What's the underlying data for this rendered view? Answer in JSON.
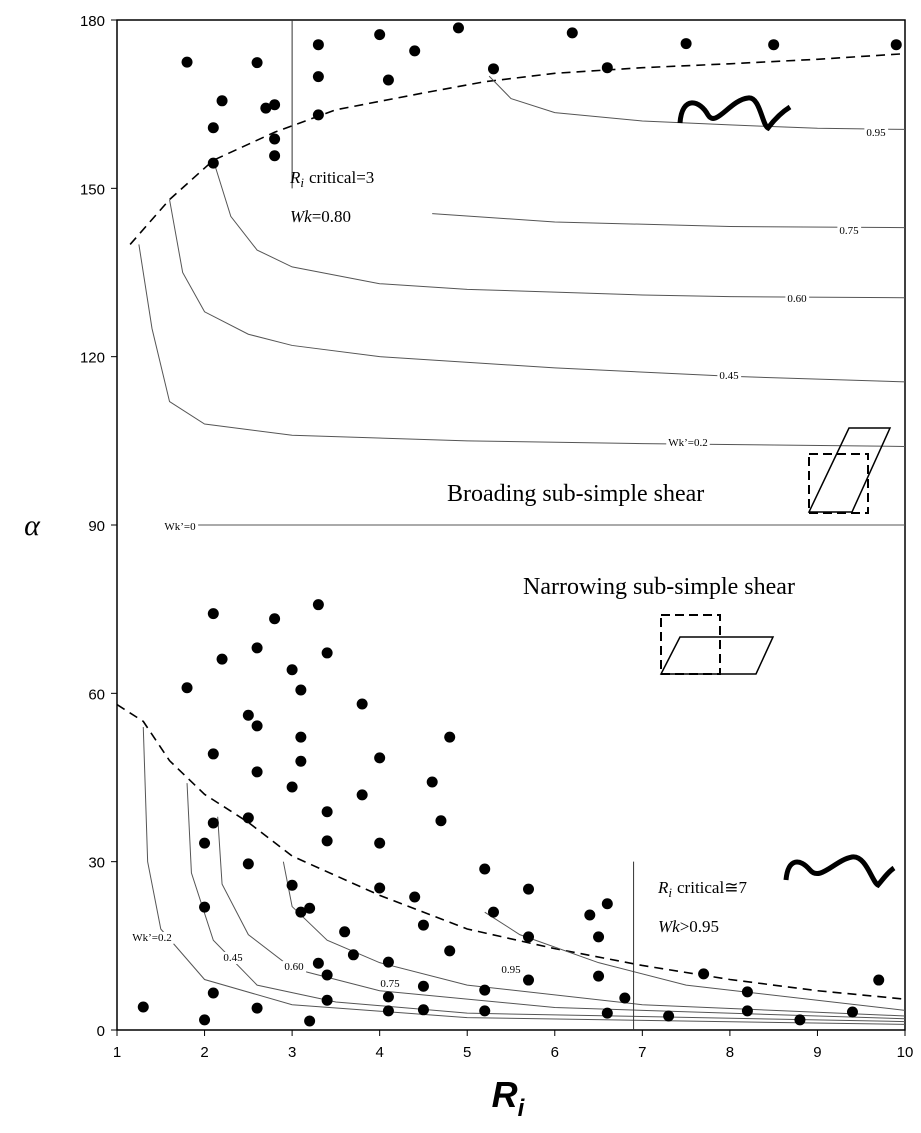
{
  "chart_data": {
    "type": "scatter",
    "x_label": {
      "symbol": "R",
      "sub": "i"
    },
    "y_label": "α",
    "xlim": [
      1,
      10
    ],
    "xticks": [
      1,
      2,
      3,
      4,
      5,
      6,
      7,
      8,
      9,
      10
    ],
    "ylim": [
      0,
      180
    ],
    "yticks": [
      0,
      30,
      60,
      90,
      120,
      150,
      180
    ],
    "series": [
      {
        "color": "#000000",
        "x": [
          1.8,
          2.6,
          3.3,
          4.0,
          4.9,
          6.2,
          7.5,
          8.5,
          9.9,
          4.4,
          3.3,
          4.1,
          5.3,
          6.6,
          2.2,
          2.7,
          2.8,
          2.1,
          3.3,
          2.8,
          2.8,
          2.1,
          2.1,
          3.3,
          2.8,
          2.2,
          2.6,
          3.4,
          3.0,
          1.8,
          3.1,
          3.8,
          2.5,
          2.6,
          3.1,
          4.8,
          2.1,
          4.0,
          3.1,
          2.6,
          4.6,
          3.0,
          3.8,
          2.5,
          2.1,
          4.7,
          3.4,
          2.0,
          4.0,
          3.4,
          2.5,
          5.2,
          5.7,
          4.0,
          3.0,
          4.4,
          6.6,
          6.4,
          2.0,
          3.1,
          3.2,
          5.3,
          3.6,
          4.5,
          5.7,
          6.5,
          4.8,
          3.7,
          3.3,
          4.1,
          3.4,
          6.5,
          5.7,
          5.2,
          6.8,
          4.5,
          4.1,
          2.1,
          3.4,
          7.7,
          8.2,
          9.7,
          1.3,
          2.6,
          4.1,
          4.5,
          5.2,
          6.6,
          7.3,
          8.2,
          8.8,
          9.4,
          2.0,
          3.2
        ],
        "values": [
          172.5,
          172.4,
          175.6,
          177.4,
          178.6,
          177.7,
          175.8,
          175.6,
          175.6,
          174.5,
          169.9,
          169.3,
          171.3,
          171.5,
          165.6,
          164.3,
          164.9,
          160.8,
          163.1,
          158.8,
          155.8,
          154.5,
          74.2,
          75.8,
          73.3,
          66.1,
          68.1,
          67.2,
          64.2,
          61.0,
          60.6,
          58.1,
          56.1,
          54.2,
          52.2,
          52.2,
          49.2,
          48.5,
          47.9,
          46.0,
          44.2,
          43.3,
          41.9,
          37.8,
          36.9,
          37.3,
          38.9,
          33.3,
          33.3,
          33.7,
          29.6,
          28.7,
          25.1,
          25.3,
          25.8,
          23.7,
          22.5,
          20.5,
          21.9,
          21.0,
          21.7,
          21.0,
          17.5,
          18.7,
          16.6,
          16.6,
          14.1,
          13.4,
          11.9,
          12.1,
          9.8,
          9.6,
          8.9,
          7.1,
          5.7,
          7.8,
          5.9,
          6.6,
          5.3,
          10.0,
          6.8,
          8.9,
          4.1,
          3.9,
          3.4,
          3.6,
          3.4,
          3.0,
          2.5,
          3.4,
          1.8,
          3.2,
          1.8,
          1.6
        ]
      }
    ],
    "contours": [
      {
        "dashed": true,
        "x": [
          1.15,
          1.6,
          2.1,
          2.8,
          3.5,
          4.5,
          5.2,
          6,
          7,
          8,
          9,
          10
        ],
        "values": [
          140,
          148,
          155,
          160,
          164,
          167,
          169,
          170.5,
          171.5,
          172.2,
          173,
          174
        ]
      },
      {
        "name": "0.95",
        "x": [
          5.25,
          5.5,
          6,
          7,
          8,
          9,
          10
        ],
        "values": [
          170,
          166,
          163.5,
          162,
          161.3,
          160.7,
          160.5
        ]
      },
      {
        "name": "0.75",
        "x": [
          4.6,
          6,
          8,
          10
        ],
        "values": [
          145.5,
          144,
          143.2,
          143
        ]
      },
      {
        "name": "0.60",
        "x": [
          2.1,
          2.3,
          2.6,
          3,
          4,
          5,
          6,
          7,
          8,
          10
        ],
        "values": [
          155,
          145,
          139,
          136,
          133,
          132,
          131.5,
          131,
          130.7,
          130.5
        ]
      },
      {
        "name": "0.45",
        "x": [
          1.6,
          1.75,
          2,
          2.5,
          3,
          4,
          6,
          8,
          10
        ],
        "values": [
          148,
          135,
          128,
          124,
          122,
          120,
          118,
          116.5,
          115.5
        ]
      },
      {
        "name": "Wk’=0.2",
        "x": [
          1.25,
          1.4,
          1.6,
          2,
          3,
          5,
          7,
          10
        ],
        "values": [
          140,
          125,
          112,
          108,
          106,
          105,
          104.5,
          104
        ]
      },
      {
        "name": "Wk’=0",
        "x": [
          1.9,
          10
        ],
        "values": [
          90,
          90
        ]
      },
      {
        "dashed": true,
        "x": [
          1,
          1.3,
          1.6,
          2,
          2.5,
          3,
          4,
          5,
          6,
          7,
          8,
          9,
          10
        ],
        "values": [
          58,
          55,
          48,
          42,
          37,
          31,
          24,
          18,
          14.5,
          11.5,
          9,
          7,
          5.5
        ]
      },
      {
        "name": "Wk’=0.2",
        "x": [
          1.3,
          1.35,
          1.5,
          2,
          3,
          5,
          10
        ],
        "values": [
          54,
          30,
          18,
          9,
          4.5,
          2.2,
          1
        ]
      },
      {
        "name": "0.45",
        "x": [
          1.8,
          1.85,
          2.1,
          2.6,
          3.5,
          5,
          10
        ],
        "values": [
          44,
          28,
          16,
          8,
          5,
          3,
          1.5
        ]
      },
      {
        "name": "0.60",
        "x": [
          2.15,
          2.2,
          2.5,
          3,
          4,
          6,
          10
        ],
        "values": [
          38,
          26,
          17,
          11,
          7,
          4,
          2
        ]
      },
      {
        "name": "0.75",
        "x": [
          2.9,
          3,
          3.4,
          4,
          5,
          7,
          10
        ],
        "values": [
          30,
          22,
          16,
          12,
          8,
          4.5,
          2.5
        ]
      },
      {
        "name": "0.95",
        "x": [
          5.2,
          5.6,
          6.5,
          7.5,
          10
        ],
        "values": [
          21,
          17,
          12,
          8,
          3.5
        ]
      }
    ],
    "critical_lines": [
      {
        "x": 3,
        "y": [
          150,
          180
        ]
      },
      {
        "x": 6.9,
        "y": [
          0,
          30
        ]
      }
    ],
    "annotations": [
      {
        "symbol": "R",
        "sub": "i",
        "text": "critical=3"
      },
      {
        "symbol": "Wk",
        "text": "=0.80"
      },
      {
        "symbol": "R",
        "sub": "i",
        "text": "critical≅7"
      },
      {
        "symbol": "Wk",
        "text": ">0.95"
      },
      {
        "text": "Broading sub-simple shear"
      },
      {
        "text": "Narrowing sub-simple shear"
      }
    ]
  }
}
